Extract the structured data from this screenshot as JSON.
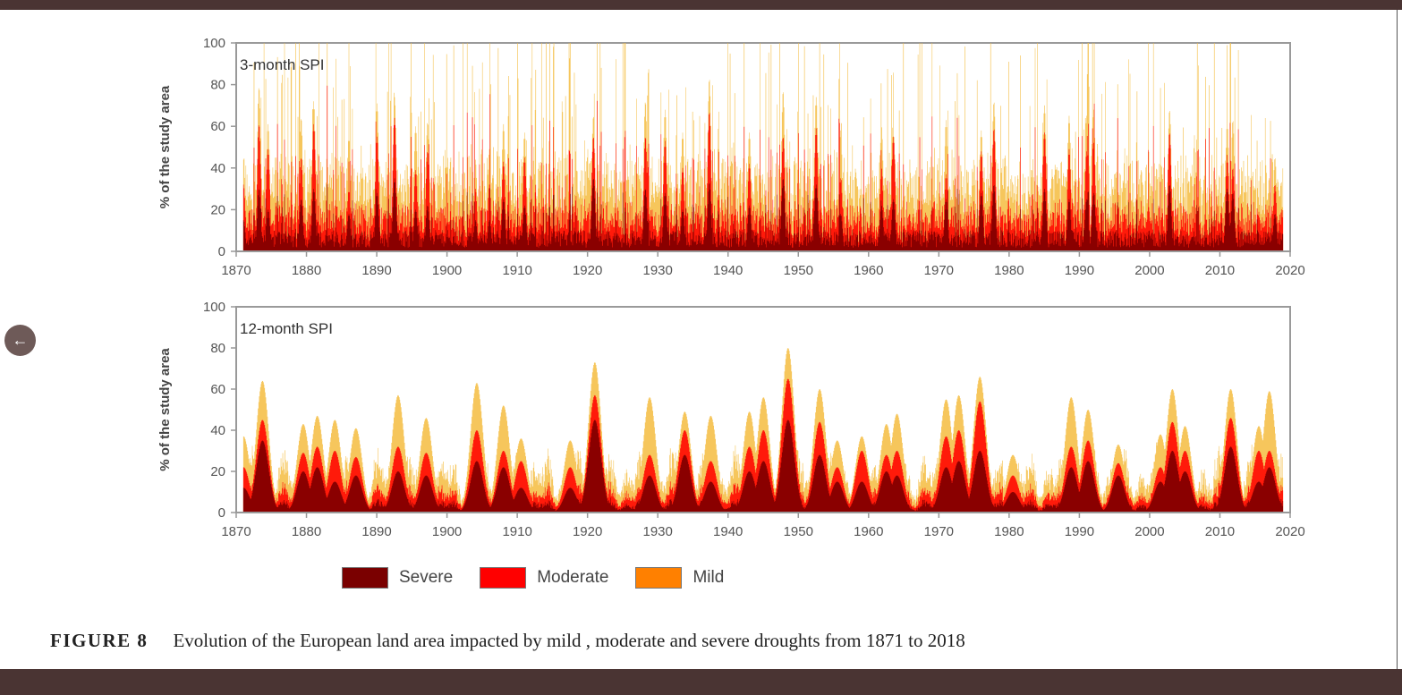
{
  "nav": {
    "back_icon": "arrow-left-icon",
    "back_glyph": "←"
  },
  "caption": {
    "label": "FIGURE 8",
    "text": "Evolution of the European land area impacted by mild , moderate and severe droughts from 1871 to 2018"
  },
  "legend": [
    {
      "label": "Severe",
      "color": "#7a0000"
    },
    {
      "label": "Moderate",
      "color": "#ff0000"
    },
    {
      "label": "Mild",
      "color": "#ff8000"
    }
  ],
  "chart_data": [
    {
      "type": "area",
      "title": "3-month SPI",
      "xlabel": "",
      "ylabel": "% of the study area",
      "xlim": [
        1870,
        2020
      ],
      "ylim": [
        0,
        100
      ],
      "x_ticks": [
        "1870",
        "1880",
        "1890",
        "1900",
        "1910",
        "1920",
        "1930",
        "1940",
        "1950",
        "1960",
        "1970",
        "1980",
        "1990",
        "2000",
        "2010",
        "2020"
      ],
      "y_ticks": [
        "0",
        "20",
        "40",
        "60",
        "80",
        "100"
      ],
      "stacked": true,
      "x_range_data": [
        1871,
        2018
      ],
      "peaks": [
        {
          "year": 1871.0,
          "severe": 15,
          "moderate": 32,
          "mild": 44
        },
        {
          "year": 1873.2,
          "severe": 30,
          "moderate": 61,
          "mild": 79
        },
        {
          "year": 1874.5,
          "severe": 20,
          "moderate": 49,
          "mild": 61
        },
        {
          "year": 1879.2,
          "severe": 25,
          "moderate": 45,
          "mild": 64
        },
        {
          "year": 1881.0,
          "severe": 30,
          "moderate": 61,
          "mild": 72
        },
        {
          "year": 1886.0,
          "severe": 18,
          "moderate": 30,
          "mild": 56
        },
        {
          "year": 1890.0,
          "severe": 28,
          "moderate": 55,
          "mild": 71
        },
        {
          "year": 1892.5,
          "severe": 35,
          "moderate": 64,
          "mild": 74
        },
        {
          "year": 1895.5,
          "severe": 20,
          "moderate": 39,
          "mild": 60
        },
        {
          "year": 1897.2,
          "severe": 22,
          "moderate": 48,
          "mild": 62
        },
        {
          "year": 1904.0,
          "severe": 15,
          "moderate": 30,
          "mild": 44
        },
        {
          "year": 1906.0,
          "severe": 15,
          "moderate": 32,
          "mild": 49
        },
        {
          "year": 1908.0,
          "severe": 25,
          "moderate": 43,
          "mild": 61
        },
        {
          "year": 1911.0,
          "severe": 22,
          "moderate": 45,
          "mild": 57
        },
        {
          "year": 1920.8,
          "severe": 35,
          "moderate": 55,
          "mild": 65
        },
        {
          "year": 1928.2,
          "severe": 30,
          "moderate": 55,
          "mild": 72
        },
        {
          "year": 1931.0,
          "severe": 28,
          "moderate": 53,
          "mild": 68
        },
        {
          "year": 1933.5,
          "severe": 20,
          "moderate": 40,
          "mild": 57
        },
        {
          "year": 1937.3,
          "severe": 33,
          "moderate": 67,
          "mild": 83
        },
        {
          "year": 1943.0,
          "severe": 22,
          "moderate": 42,
          "mild": 57
        },
        {
          "year": 1947.8,
          "severe": 35,
          "moderate": 55,
          "mild": 77
        },
        {
          "year": 1952.5,
          "severe": 32,
          "moderate": 59,
          "mild": 74
        },
        {
          "year": 1956.0,
          "severe": 18,
          "moderate": 35,
          "mild": 58
        },
        {
          "year": 1961.8,
          "severe": 22,
          "moderate": 40,
          "mild": 60
        },
        {
          "year": 1963.5,
          "severe": 25,
          "moderate": 55,
          "mild": 58
        },
        {
          "year": 1971.0,
          "severe": 25,
          "moderate": 37,
          "mild": 63
        },
        {
          "year": 1976.0,
          "severe": 28,
          "moderate": 48,
          "mild": 58
        },
        {
          "year": 1977.8,
          "severe": 32,
          "moderate": 59,
          "mild": 72
        },
        {
          "year": 1985.0,
          "severe": 30,
          "moderate": 57,
          "mild": 70
        },
        {
          "year": 1988.5,
          "severe": 25,
          "moderate": 49,
          "mild": 65
        },
        {
          "year": 1991.0,
          "severe": 25,
          "moderate": 48,
          "mild": 65
        },
        {
          "year": 1992.0,
          "severe": 28,
          "moderate": 52,
          "mild": 68
        },
        {
          "year": 2002.8,
          "severe": 32,
          "moderate": 57,
          "mild": 68
        },
        {
          "year": 2011.0,
          "severe": 30,
          "moderate": 45,
          "mild": 62
        },
        {
          "year": 2011.8,
          "severe": 28,
          "moderate": 40,
          "mild": 63
        },
        {
          "year": 2017.8,
          "severe": 18,
          "moderate": 32,
          "mild": 45
        }
      ],
      "baseline": {
        "severe": 6,
        "moderate": 12,
        "mild": 22
      }
    },
    {
      "type": "area",
      "title": "12-month SPI",
      "xlabel": "",
      "ylabel": "% of the study area",
      "xlim": [
        1870,
        2020
      ],
      "ylim": [
        0,
        100
      ],
      "x_ticks": [
        "1870",
        "1880",
        "1890",
        "1900",
        "1910",
        "1920",
        "1930",
        "1940",
        "1950",
        "1960",
        "1970",
        "1980",
        "1990",
        "2000",
        "2010",
        "2020"
      ],
      "y_ticks": [
        "0",
        "20",
        "40",
        "60",
        "80",
        "100"
      ],
      "stacked": true,
      "x_range_data": [
        1871,
        2018
      ],
      "peaks": [
        {
          "year": 1871.0,
          "severe": 12,
          "moderate": 22,
          "mild": 37
        },
        {
          "year": 1873.7,
          "severe": 35,
          "moderate": 45,
          "mild": 64
        },
        {
          "year": 1879.5,
          "severe": 20,
          "moderate": 29,
          "mild": 43
        },
        {
          "year": 1881.5,
          "severe": 22,
          "moderate": 32,
          "mild": 47
        },
        {
          "year": 1884.0,
          "severe": 15,
          "moderate": 30,
          "mild": 45
        },
        {
          "year": 1887.0,
          "severe": 18,
          "moderate": 27,
          "mild": 41
        },
        {
          "year": 1893.0,
          "severe": 20,
          "moderate": 32,
          "mild": 57
        },
        {
          "year": 1897.0,
          "severe": 18,
          "moderate": 29,
          "mild": 46
        },
        {
          "year": 1904.2,
          "severe": 25,
          "moderate": 40,
          "mild": 63
        },
        {
          "year": 1908.0,
          "severe": 22,
          "moderate": 30,
          "mild": 52
        },
        {
          "year": 1910.5,
          "severe": 12,
          "moderate": 25,
          "mild": 36
        },
        {
          "year": 1917.5,
          "severe": 12,
          "moderate": 22,
          "mild": 35
        },
        {
          "year": 1921.0,
          "severe": 45,
          "moderate": 57,
          "mild": 73
        },
        {
          "year": 1928.8,
          "severe": 18,
          "moderate": 28,
          "mild": 56
        },
        {
          "year": 1933.8,
          "severe": 28,
          "moderate": 40,
          "mild": 49
        },
        {
          "year": 1937.5,
          "severe": 15,
          "moderate": 25,
          "mild": 47
        },
        {
          "year": 1943.0,
          "severe": 20,
          "moderate": 32,
          "mild": 49
        },
        {
          "year": 1945.0,
          "severe": 25,
          "moderate": 40,
          "mild": 56
        },
        {
          "year": 1948.5,
          "severe": 45,
          "moderate": 65,
          "mild": 80
        },
        {
          "year": 1953.0,
          "severe": 28,
          "moderate": 44,
          "mild": 60
        },
        {
          "year": 1955.5,
          "severe": 15,
          "moderate": 22,
          "mild": 35
        },
        {
          "year": 1959.0,
          "severe": 15,
          "moderate": 30,
          "mild": 37
        },
        {
          "year": 1962.5,
          "severe": 20,
          "moderate": 28,
          "mild": 43
        },
        {
          "year": 1964.0,
          "severe": 18,
          "moderate": 30,
          "mild": 48
        },
        {
          "year": 1971.0,
          "severe": 22,
          "moderate": 37,
          "mild": 55
        },
        {
          "year": 1972.8,
          "severe": 25,
          "moderate": 40,
          "mild": 57
        },
        {
          "year": 1975.8,
          "severe": 30,
          "moderate": 54,
          "mild": 66
        },
        {
          "year": 1980.5,
          "severe": 10,
          "moderate": 18,
          "mild": 28
        },
        {
          "year": 1988.8,
          "severe": 22,
          "moderate": 32,
          "mild": 56
        },
        {
          "year": 1991.2,
          "severe": 25,
          "moderate": 35,
          "mild": 50
        },
        {
          "year": 1995.5,
          "severe": 18,
          "moderate": 24,
          "mild": 33
        },
        {
          "year": 2001.5,
          "severe": 15,
          "moderate": 22,
          "mild": 38
        },
        {
          "year": 2003.2,
          "severe": 30,
          "moderate": 44,
          "mild": 60
        },
        {
          "year": 2005.0,
          "severe": 20,
          "moderate": 30,
          "mild": 42
        },
        {
          "year": 2011.5,
          "severe": 32,
          "moderate": 46,
          "mild": 60
        },
        {
          "year": 2015.5,
          "severe": 15,
          "moderate": 30,
          "mild": 42
        },
        {
          "year": 2017.0,
          "severe": 22,
          "moderate": 30,
          "mild": 59
        }
      ],
      "baseline": {
        "severe": 3,
        "moderate": 6,
        "mild": 12
      }
    }
  ]
}
